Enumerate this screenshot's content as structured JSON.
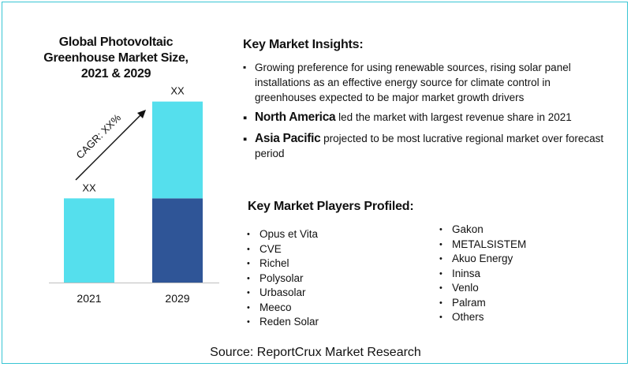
{
  "chart_data": {
    "type": "bar",
    "title": "Global Photovoltaic Greenhouse Market Size, 2021 & 2029",
    "categories": [
      "2021",
      "2029"
    ],
    "values": [
      1.0,
      2.15
    ],
    "value_labels": [
      "XX",
      "XX"
    ],
    "stacked_segments_2029": {
      "lower": 1.0,
      "upper": 1.15
    },
    "annotation": "CAGR: XX%",
    "colors": {
      "light": "#55dfed",
      "dark": "#2f5597",
      "frame": "#38c5d4"
    },
    "ylim": [
      0,
      2.25
    ],
    "grid": false,
    "legend": "none"
  },
  "insights": {
    "heading": "Key Market Insights:",
    "items": [
      "Growing preference for using renewable sources, rising solar panel installations as an effective energy source for climate control in greenhouses expected to be major market growth drivers",
      {
        "highlight": "North America",
        "rest": " led the market with largest revenue share in 2021"
      },
      {
        "highlight": "Asia Pacific",
        "rest": " projected to be most lucrative regional market over forecast period"
      }
    ]
  },
  "players": {
    "heading": "Key Market Players Profiled:",
    "col1": [
      "Opus et Vita",
      "CVE",
      "Richel",
      "Polysolar",
      "Urbasolar",
      "Meeco",
      "Reden Solar"
    ],
    "col2": [
      "Gakon",
      "METALSISTEM",
      "Akuo Energy",
      "Ininsa",
      "Venlo",
      "Palram",
      "Others"
    ]
  },
  "source": "Source: ReportCrux Market Research"
}
